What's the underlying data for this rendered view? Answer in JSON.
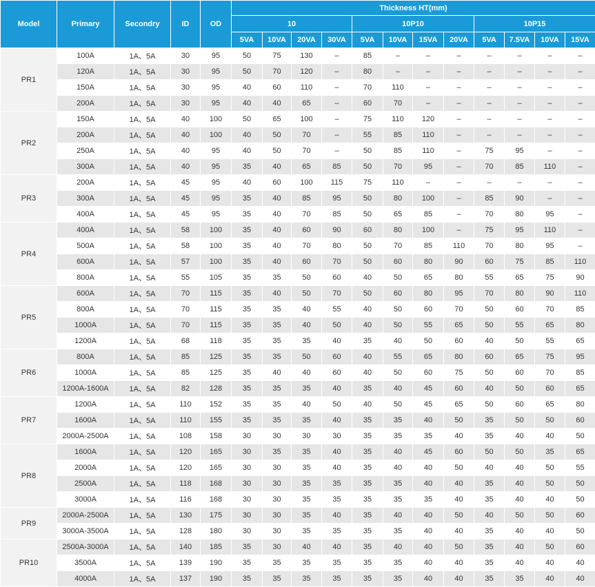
{
  "header": {
    "model": "Model",
    "primary": "Primary",
    "secondary": "Secondry",
    "id": "ID",
    "od": "OD",
    "thickness": "Thickness HT(mm)",
    "groups": [
      {
        "name": "10",
        "columns": [
          "5VA",
          "10VA",
          "20VA",
          "30VA"
        ]
      },
      {
        "name": "10P10",
        "columns": [
          "5VA",
          "10VA",
          "15VA",
          "20VA"
        ]
      },
      {
        "name": "10P15",
        "columns": [
          "5VA",
          "7.5VA",
          "10VA",
          "15VA"
        ]
      }
    ]
  },
  "models": [
    {
      "model": "PR1",
      "rows": [
        [
          "100A",
          "1A、5A",
          30,
          95,
          50,
          75,
          130,
          "–",
          85,
          "–",
          "–",
          "–",
          "–",
          "–",
          "–",
          "–"
        ],
        [
          "120A",
          "1A、5A",
          30,
          95,
          50,
          70,
          120,
          "–",
          80,
          "–",
          "–",
          "–",
          "–",
          "–",
          "–",
          "–"
        ],
        [
          "150A",
          "1A、5A",
          30,
          95,
          40,
          60,
          110,
          "–",
          70,
          110,
          "–",
          "–",
          "–",
          "–",
          "–",
          "–"
        ],
        [
          "200A",
          "1A、5A",
          30,
          95,
          40,
          40,
          65,
          "–",
          60,
          70,
          "–",
          "–",
          "–",
          "–",
          "–",
          "–"
        ]
      ]
    },
    {
      "model": "PR2",
      "rows": [
        [
          "150A",
          "1A、5A",
          40,
          100,
          50,
          65,
          100,
          "–",
          75,
          110,
          120,
          "–",
          "–",
          "–",
          "–",
          "–"
        ],
        [
          "200A",
          "1A、5A",
          40,
          100,
          40,
          50,
          70,
          "–",
          55,
          85,
          110,
          "–",
          "–",
          "–",
          "–",
          "–"
        ],
        [
          "250A",
          "1A、5A",
          40,
          95,
          40,
          50,
          70,
          "–",
          50,
          85,
          110,
          "–",
          75,
          95,
          "–",
          "–"
        ],
        [
          "300A",
          "1A、5A",
          40,
          95,
          35,
          40,
          65,
          85,
          50,
          70,
          95,
          "–",
          70,
          85,
          110,
          "–"
        ]
      ]
    },
    {
      "model": "PR3",
      "rows": [
        [
          "200A",
          "1A、5A",
          45,
          95,
          40,
          60,
          100,
          115,
          75,
          110,
          "–",
          "–",
          "–",
          "–",
          "–",
          "–"
        ],
        [
          "300A",
          "1A、5A",
          45,
          95,
          35,
          40,
          85,
          95,
          50,
          80,
          100,
          "–",
          85,
          90,
          "–",
          "–"
        ],
        [
          "400A",
          "1A、5A",
          45,
          95,
          35,
          40,
          70,
          85,
          50,
          65,
          85,
          "–",
          70,
          80,
          95,
          "–"
        ]
      ]
    },
    {
      "model": "PR4",
      "rows": [
        [
          "400A",
          "1A、5A",
          58,
          100,
          35,
          40,
          60,
          90,
          60,
          80,
          100,
          "–",
          75,
          95,
          110,
          "–"
        ],
        [
          "500A",
          "1A、5A",
          58,
          100,
          35,
          40,
          70,
          80,
          50,
          70,
          85,
          110,
          70,
          80,
          95,
          "–"
        ],
        [
          "600A",
          "1A、5A",
          57,
          100,
          35,
          40,
          60,
          70,
          50,
          60,
          80,
          90,
          60,
          75,
          85,
          110
        ],
        [
          "800A",
          "1A、5A",
          55,
          105,
          35,
          35,
          50,
          60,
          40,
          50,
          65,
          80,
          55,
          65,
          75,
          90
        ]
      ]
    },
    {
      "model": "PR5",
      "rows": [
        [
          "600A",
          "1A、5A",
          70,
          115,
          35,
          40,
          50,
          70,
          50,
          60,
          80,
          95,
          70,
          80,
          90,
          110
        ],
        [
          "800A",
          "1A、5A",
          70,
          115,
          35,
          35,
          40,
          55,
          40,
          50,
          60,
          70,
          50,
          60,
          70,
          85
        ],
        [
          "1000A",
          "1A、5A",
          70,
          115,
          35,
          35,
          40,
          50,
          40,
          50,
          55,
          65,
          50,
          55,
          65,
          80
        ],
        [
          "1200A",
          "1A、5A",
          68,
          118,
          35,
          35,
          35,
          40,
          35,
          40,
          50,
          60,
          40,
          50,
          55,
          65
        ]
      ]
    },
    {
      "model": "PR6",
      "rows": [
        [
          "800A",
          "1A、5A",
          85,
          125,
          35,
          35,
          50,
          60,
          40,
          55,
          65,
          80,
          60,
          65,
          75,
          95
        ],
        [
          "1000A",
          "1A、5A",
          85,
          125,
          35,
          40,
          40,
          60,
          40,
          50,
          60,
          75,
          50,
          60,
          70,
          85
        ],
        [
          "1200A-1600A",
          "1A、5A",
          82,
          128,
          35,
          35,
          35,
          40,
          35,
          40,
          45,
          60,
          40,
          50,
          60,
          65
        ]
      ]
    },
    {
      "model": "PR7",
      "rows": [
        [
          "1200A",
          "1A、5A",
          110,
          152,
          35,
          35,
          40,
          50,
          40,
          50,
          45,
          65,
          50,
          60,
          65,
          80
        ],
        [
          "1600A",
          "1A、5A",
          110,
          155,
          35,
          35,
          35,
          40,
          35,
          35,
          40,
          50,
          35,
          50,
          50,
          60
        ],
        [
          "2000A-2500A",
          "1A、5A",
          108,
          158,
          30,
          30,
          30,
          30,
          35,
          35,
          35,
          40,
          35,
          40,
          40,
          50
        ]
      ]
    },
    {
      "model": "PR8",
      "rows": [
        [
          "1600A",
          "1A、5A",
          120,
          165,
          30,
          35,
          35,
          40,
          35,
          40,
          45,
          60,
          50,
          50,
          35,
          65
        ],
        [
          "2000A",
          "1A、5A",
          120,
          165,
          30,
          30,
          35,
          40,
          35,
          40,
          40,
          50,
          40,
          40,
          50,
          55
        ],
        [
          "2500A",
          "1A、5A",
          118,
          168,
          30,
          30,
          35,
          35,
          35,
          35,
          40,
          40,
          35,
          40,
          50,
          50
        ],
        [
          "3000A",
          "1A、5A",
          116,
          168,
          30,
          30,
          35,
          35,
          35,
          35,
          35,
          40,
          35,
          40,
          40,
          50
        ]
      ]
    },
    {
      "model": "PR9",
      "rows": [
        [
          "2000A-2500A",
          "1A、5A",
          130,
          175,
          30,
          30,
          35,
          40,
          35,
          40,
          40,
          50,
          40,
          50,
          50,
          60
        ],
        [
          "3000A-3500A",
          "1A、5A",
          128,
          180,
          30,
          30,
          35,
          35,
          35,
          35,
          40,
          40,
          35,
          40,
          40,
          50
        ]
      ]
    },
    {
      "model": "PR10",
      "rows": [
        [
          "2500A-3000A",
          "1A、5A",
          140,
          185,
          35,
          30,
          40,
          40,
          35,
          40,
          40,
          50,
          35,
          40,
          50,
          60
        ],
        [
          "3500A",
          "1A、5A",
          139,
          190,
          35,
          35,
          35,
          35,
          35,
          35,
          40,
          40,
          35,
          40,
          40,
          40
        ],
        [
          "4000A",
          "1A、5A",
          137,
          190,
          35,
          35,
          35,
          35,
          35,
          35,
          40,
          40,
          35,
          35,
          40,
          40
        ]
      ]
    }
  ]
}
